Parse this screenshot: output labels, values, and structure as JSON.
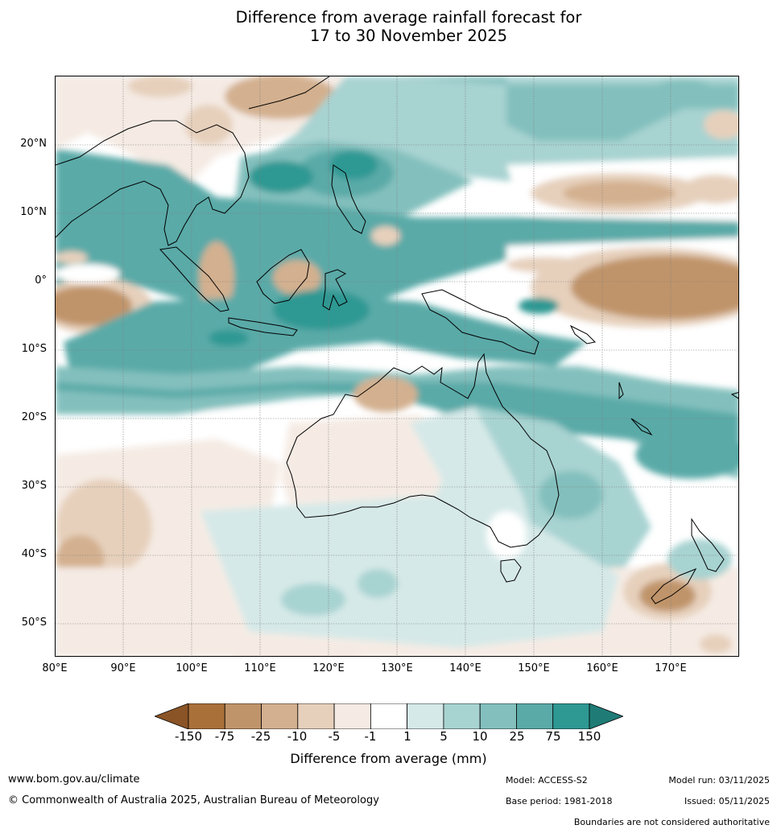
{
  "title": {
    "line1": "Difference from average rainfall forecast for",
    "line2": "17 to 30 November 2025"
  },
  "map": {
    "lat_labels": [
      "20°N",
      "10°N",
      "0°",
      "10°S",
      "20°S",
      "30°S",
      "40°S",
      "50°S"
    ],
    "lon_labels": [
      "80°E",
      "90°E",
      "100°E",
      "110°E",
      "120°E",
      "130°E",
      "140°E",
      "150°E",
      "160°E",
      "170°E"
    ]
  },
  "colorbar": {
    "ticks": [
      "-150",
      "-75",
      "-25",
      "-10",
      "-5",
      "-1",
      "1",
      "5",
      "10",
      "25",
      "75",
      "150"
    ],
    "colors": [
      "#a9703a",
      "#c0946a",
      "#d3b08f",
      "#e6d0bc",
      "#f5ebe4",
      "#ffffff",
      "#d5e9e8",
      "#a7d3d1",
      "#83c0bd",
      "#5aaaa8",
      "#2e9893"
    ],
    "under_color": "#8a5426",
    "over_color": "#1f7b76",
    "label": "Difference from average (mm)"
  },
  "footer": {
    "website": "www.bom.gov.au/climate",
    "copyright": "© Commonwealth of Australia 2025, Australian Bureau of Meteorology",
    "model": "Model: ACCESS-S2",
    "base_period": "Base period: 1981-2018",
    "model_run": "Model run: 03/11/2025",
    "issued": "Issued: 05/11/2025",
    "disclaimer": "Boundaries are not considered authoritative"
  }
}
